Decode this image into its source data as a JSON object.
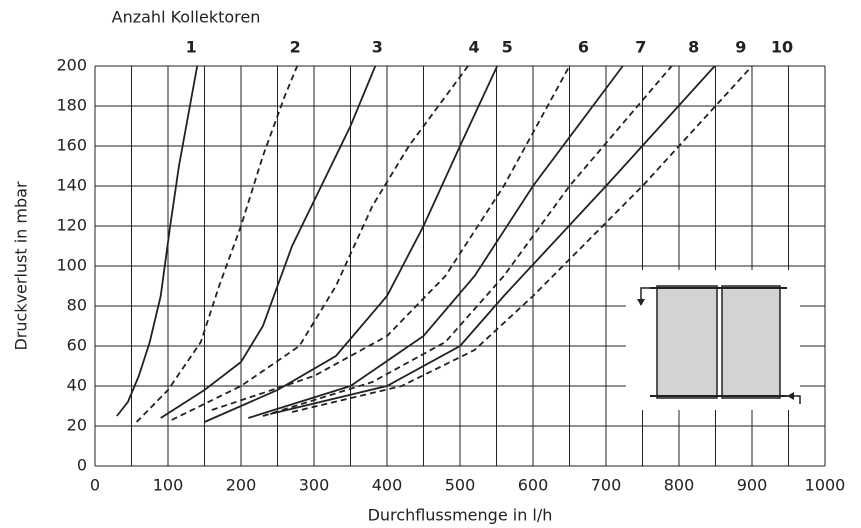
{
  "chart_data": {
    "type": "line",
    "title": "Anzahl Kollektoren",
    "xlabel": "Durchflussmenge in l/h",
    "ylabel": "Druckverlust in mbar",
    "xlim": [
      0,
      1000
    ],
    "ylim": [
      0,
      200
    ],
    "xticks": [
      0,
      100,
      200,
      300,
      400,
      500,
      600,
      700,
      800,
      900,
      1000
    ],
    "xminorticks": [
      50,
      150,
      250,
      350,
      450,
      550,
      650,
      750,
      850,
      950
    ],
    "yticks": [
      0,
      20,
      40,
      60,
      80,
      100,
      120,
      140,
      160,
      180,
      200
    ],
    "grid": true,
    "series": [
      {
        "name": "1",
        "color": "#222222",
        "dashed": false,
        "x": [
          30,
          45,
          60,
          75,
          90,
          103,
          115,
          130,
          140
        ],
        "values": [
          25,
          32,
          45,
          62,
          85,
          120,
          150,
          180,
          200
        ]
      },
      {
        "name": "2",
        "color": "#222222",
        "dashed": true,
        "x": [
          57,
          100,
          145,
          170,
          200,
          230,
          260,
          277
        ],
        "values": [
          22,
          38,
          62,
          90,
          120,
          155,
          185,
          200
        ]
      },
      {
        "name": "3",
        "color": "#222222",
        "dashed": false,
        "x": [
          90,
          150,
          200,
          230,
          270,
          310,
          350,
          384
        ],
        "values": [
          24,
          38,
          52,
          70,
          110,
          140,
          170,
          200
        ]
      },
      {
        "name": "4",
        "color": "#222222",
        "dashed": true,
        "x": [
          105,
          200,
          280,
          330,
          380,
          430,
          511
        ],
        "values": [
          23,
          40,
          60,
          90,
          130,
          160,
          200
        ]
      },
      {
        "name": "5",
        "color": "#222222",
        "dashed": false,
        "x": [
          150,
          250,
          330,
          400,
          450,
          500,
          551
        ],
        "values": [
          22,
          38,
          55,
          85,
          120,
          160,
          200
        ]
      },
      {
        "name": "6",
        "color": "#222222",
        "dashed": true,
        "x": [
          160,
          300,
          400,
          480,
          560,
          650
        ],
        "values": [
          28,
          45,
          65,
          95,
          140,
          200
        ]
      },
      {
        "name": "7",
        "color": "#222222",
        "dashed": false,
        "x": [
          210,
          350,
          450,
          520,
          600,
          723
        ],
        "values": [
          24,
          40,
          65,
          95,
          140,
          200
        ]
      },
      {
        "name": "8",
        "color": "#222222",
        "dashed": true,
        "x": [
          230,
          380,
          480,
          560,
          650,
          790
        ],
        "values": [
          25,
          42,
          62,
          95,
          140,
          200
        ]
      },
      {
        "name": "9",
        "color": "#222222",
        "dashed": false,
        "x": [
          240,
          400,
          500,
          560,
          700,
          849
        ],
        "values": [
          26,
          40,
          60,
          85,
          140,
          200
        ]
      },
      {
        "name": "10",
        "color": "#222222",
        "dashed": true,
        "x": [
          270,
          420,
          520,
          600,
          750,
          900
        ],
        "values": [
          27,
          40,
          58,
          85,
          140,
          200
        ]
      }
    ]
  }
}
